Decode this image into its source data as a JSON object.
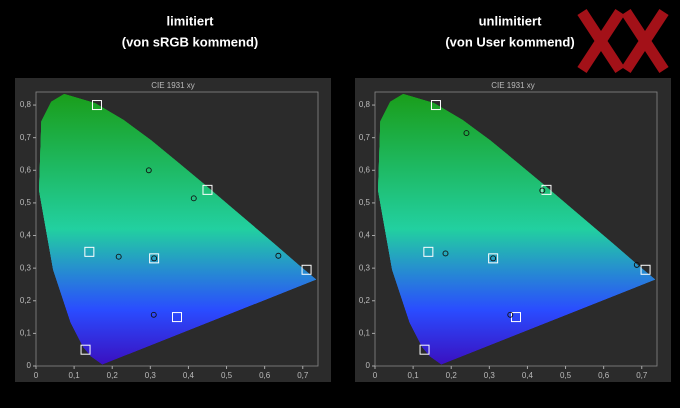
{
  "chart_data": [
    {
      "type": "scatter",
      "title": "limitiert",
      "subtitle": "(von sRGB kommend)",
      "plot_title": "CIE 1931 xy",
      "xlim": [
        0,
        0.74
      ],
      "ylim": [
        0,
        0.84
      ],
      "xticks": [
        0,
        {
          "value": 0.1,
          "label": "0,1"
        },
        {
          "value": 0.2,
          "label": "0,2"
        },
        {
          "value": 0.3,
          "label": "0,3"
        },
        {
          "value": 0.4,
          "label": "0,4"
        },
        {
          "value": 0.5,
          "label": "0,5"
        },
        {
          "value": 0.6,
          "label": "0,6"
        },
        {
          "value": 0.7,
          "label": "0,7"
        }
      ],
      "yticks": [
        0,
        {
          "value": 0.1,
          "label": "0,1"
        },
        {
          "value": 0.2,
          "label": "0,2"
        },
        {
          "value": 0.3,
          "label": "0,3"
        },
        {
          "value": 0.4,
          "label": "0,4"
        },
        {
          "value": 0.5,
          "label": "0,5"
        },
        {
          "value": 0.6,
          "label": "0,6"
        },
        {
          "value": 0.7,
          "label": "0,7"
        },
        {
          "value": 0.8,
          "label": "0,8"
        }
      ],
      "series": [
        {
          "marker": "square",
          "color": "#ffffff",
          "x": [
            0.16,
            0.45,
            0.14,
            0.31,
            0.71,
            0.37,
            0.13
          ],
          "values": [
            0.8,
            0.54,
            0.35,
            0.33,
            0.295,
            0.15,
            0.05
          ]
        },
        {
          "marker": "circle",
          "color": "#111111",
          "x": [
            0.296,
            0.414,
            0.217,
            0.31,
            0.636,
            0.309
          ],
          "values": [
            0.6,
            0.514,
            0.335,
            0.33,
            0.338,
            0.157
          ]
        }
      ]
    },
    {
      "type": "scatter",
      "title": "unlimitiert",
      "subtitle": "(von User kommend)",
      "plot_title": "CIE 1931 xy",
      "xlim": [
        0,
        0.74
      ],
      "ylim": [
        0,
        0.84
      ],
      "xticks": [
        0,
        {
          "value": 0.1,
          "label": "0,1"
        },
        {
          "value": 0.2,
          "label": "0,2"
        },
        {
          "value": 0.3,
          "label": "0,3"
        },
        {
          "value": 0.4,
          "label": "0,4"
        },
        {
          "value": 0.5,
          "label": "0,5"
        },
        {
          "value": 0.6,
          "label": "0,6"
        },
        {
          "value": 0.7,
          "label": "0,7"
        }
      ],
      "yticks": [
        0,
        {
          "value": 0.1,
          "label": "0,1"
        },
        {
          "value": 0.2,
          "label": "0,2"
        },
        {
          "value": 0.3,
          "label": "0,3"
        },
        {
          "value": 0.4,
          "label": "0,4"
        },
        {
          "value": 0.5,
          "label": "0,5"
        },
        {
          "value": 0.6,
          "label": "0,6"
        },
        {
          "value": 0.7,
          "label": "0,7"
        },
        {
          "value": 0.8,
          "label": "0,8"
        }
      ],
      "series": [
        {
          "marker": "square",
          "color": "#ffffff",
          "x": [
            0.16,
            0.45,
            0.14,
            0.31,
            0.71,
            0.37,
            0.13
          ],
          "values": [
            0.8,
            0.54,
            0.35,
            0.33,
            0.295,
            0.15,
            0.05
          ]
        },
        {
          "marker": "circle",
          "color": "#111111",
          "x": [
            0.24,
            0.439,
            0.185,
            0.31,
            0.687,
            0.355
          ],
          "values": [
            0.714,
            0.538,
            0.345,
            0.33,
            0.31,
            0.157
          ]
        }
      ]
    }
  ]
}
